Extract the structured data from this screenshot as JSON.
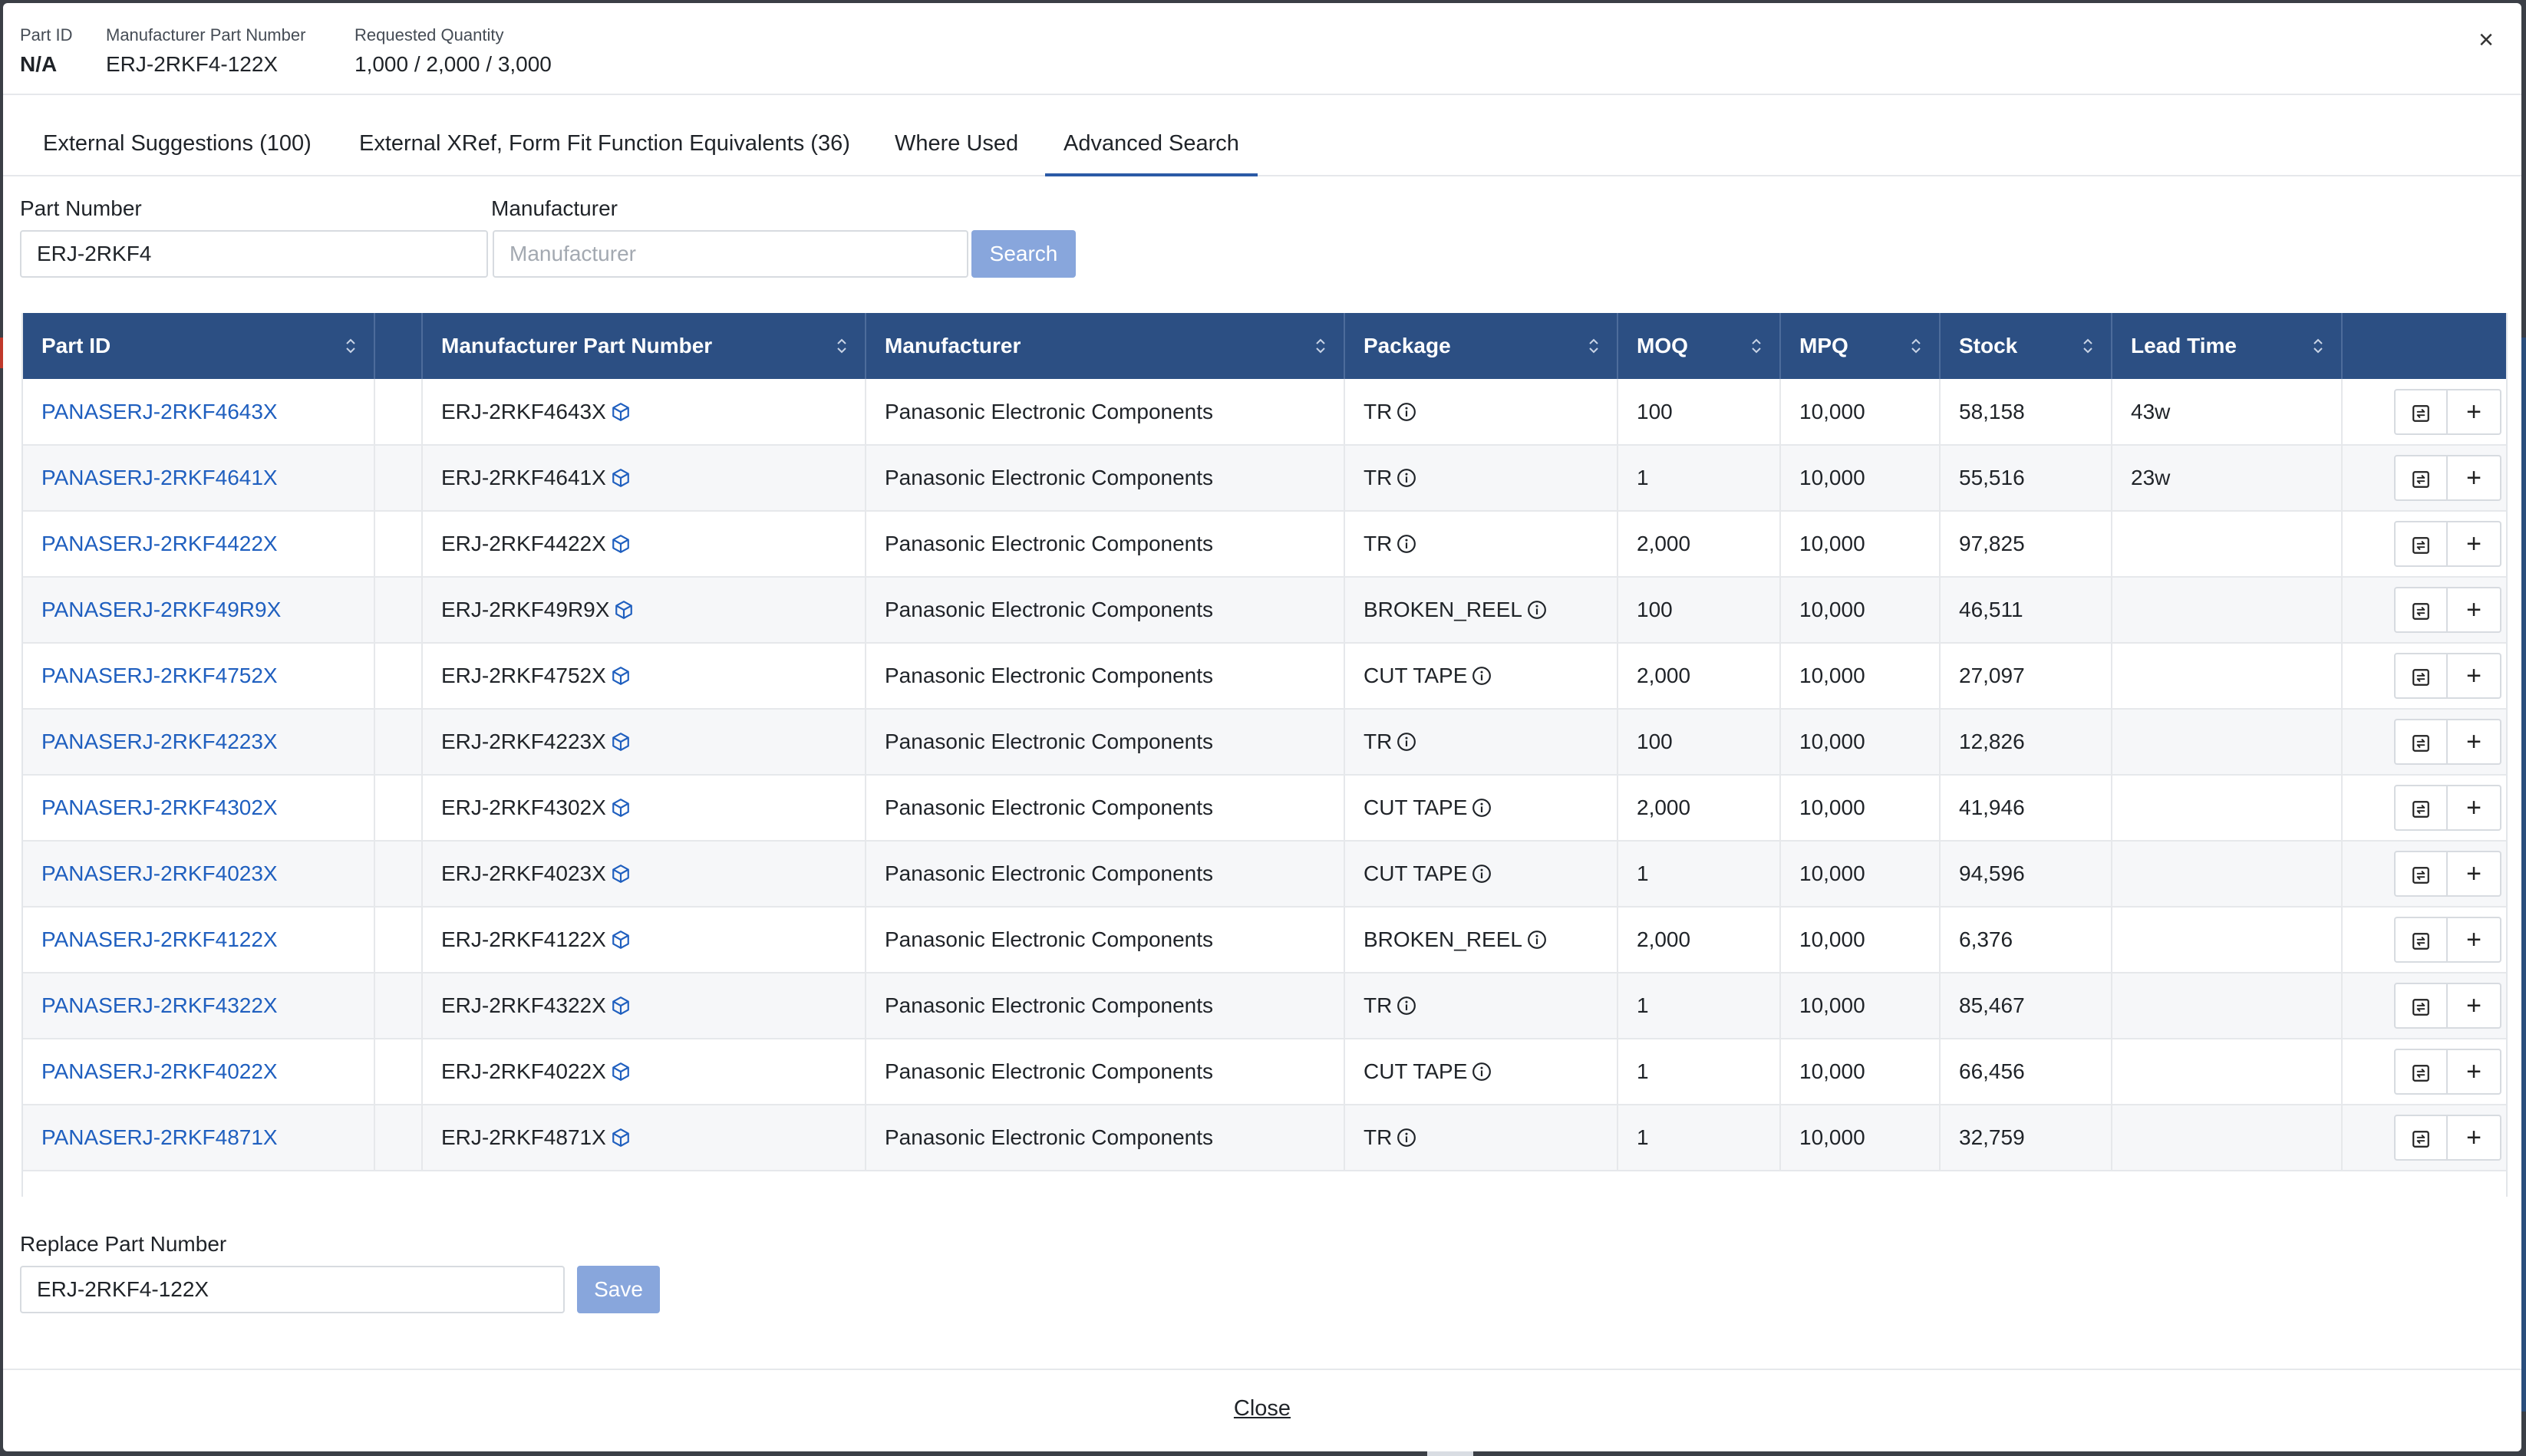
{
  "header": {
    "part_id_label": "Part ID",
    "part_id_value": "N/A",
    "mpn_label": "Manufacturer Part Number",
    "mpn_value": "ERJ-2RKF4-122X",
    "qty_label": "Requested Quantity",
    "qty_value": "1,000 / 2,000 / 3,000",
    "close_glyph": "×"
  },
  "tabs": [
    {
      "label": "External Suggestions (100)",
      "active": false
    },
    {
      "label": "External XRef, Form Fit Function Equivalents (36)",
      "active": false
    },
    {
      "label": "Where Used",
      "active": false
    },
    {
      "label": "Advanced Search",
      "active": true
    }
  ],
  "search": {
    "part_number_label": "Part Number",
    "part_number_value": "ERJ-2RKF4",
    "manufacturer_label": "Manufacturer",
    "manufacturer_value": "",
    "manufacturer_placeholder": "Manufacturer",
    "search_button": "Search"
  },
  "table": {
    "columns": [
      "Part ID",
      "",
      "Manufacturer Part Number",
      "Manufacturer",
      "Package",
      "MOQ",
      "MPQ",
      "Stock",
      "Lead Time",
      ""
    ],
    "rows": [
      {
        "part_id": "PANASERJ-2RKF4643X",
        "mpn": "ERJ-2RKF4643X",
        "manufacturer": "Panasonic Electronic Components",
        "package": "TR",
        "moq": "100",
        "mpq": "10,000",
        "stock": "58,158",
        "lead_time": "43w"
      },
      {
        "part_id": "PANASERJ-2RKF4641X",
        "mpn": "ERJ-2RKF4641X",
        "manufacturer": "Panasonic Electronic Components",
        "package": "TR",
        "moq": "1",
        "mpq": "10,000",
        "stock": "55,516",
        "lead_time": "23w"
      },
      {
        "part_id": "PANASERJ-2RKF4422X",
        "mpn": "ERJ-2RKF4422X",
        "manufacturer": "Panasonic Electronic Components",
        "package": "TR",
        "moq": "2,000",
        "mpq": "10,000",
        "stock": "97,825",
        "lead_time": ""
      },
      {
        "part_id": "PANASERJ-2RKF49R9X",
        "mpn": "ERJ-2RKF49R9X",
        "manufacturer": "Panasonic Electronic Components",
        "package": "BROKEN_REEL",
        "moq": "100",
        "mpq": "10,000",
        "stock": "46,511",
        "lead_time": ""
      },
      {
        "part_id": "PANASERJ-2RKF4752X",
        "mpn": "ERJ-2RKF4752X",
        "manufacturer": "Panasonic Electronic Components",
        "package": "CUT TAPE",
        "moq": "2,000",
        "mpq": "10,000",
        "stock": "27,097",
        "lead_time": ""
      },
      {
        "part_id": "PANASERJ-2RKF4223X",
        "mpn": "ERJ-2RKF4223X",
        "manufacturer": "Panasonic Electronic Components",
        "package": "TR",
        "moq": "100",
        "mpq": "10,000",
        "stock": "12,826",
        "lead_time": ""
      },
      {
        "part_id": "PANASERJ-2RKF4302X",
        "mpn": "ERJ-2RKF4302X",
        "manufacturer": "Panasonic Electronic Components",
        "package": "CUT TAPE",
        "moq": "2,000",
        "mpq": "10,000",
        "stock": "41,946",
        "lead_time": ""
      },
      {
        "part_id": "PANASERJ-2RKF4023X",
        "mpn": "ERJ-2RKF4023X",
        "manufacturer": "Panasonic Electronic Components",
        "package": "CUT TAPE",
        "moq": "1",
        "mpq": "10,000",
        "stock": "94,596",
        "lead_time": ""
      },
      {
        "part_id": "PANASERJ-2RKF4122X",
        "mpn": "ERJ-2RKF4122X",
        "manufacturer": "Panasonic Electronic Components",
        "package": "BROKEN_REEL",
        "moq": "2,000",
        "mpq": "10,000",
        "stock": "6,376",
        "lead_time": ""
      },
      {
        "part_id": "PANASERJ-2RKF4322X",
        "mpn": "ERJ-2RKF4322X",
        "manufacturer": "Panasonic Electronic Components",
        "package": "TR",
        "moq": "1",
        "mpq": "10,000",
        "stock": "85,467",
        "lead_time": ""
      },
      {
        "part_id": "PANASERJ-2RKF4022X",
        "mpn": "ERJ-2RKF4022X",
        "manufacturer": "Panasonic Electronic Components",
        "package": "CUT TAPE",
        "moq": "1",
        "mpq": "10,000",
        "stock": "66,456",
        "lead_time": ""
      },
      {
        "part_id": "PANASERJ-2RKF4871X",
        "mpn": "ERJ-2RKF4871X",
        "manufacturer": "Panasonic Electronic Components",
        "package": "TR",
        "moq": "1",
        "mpq": "10,000",
        "stock": "32,759",
        "lead_time": ""
      }
    ],
    "action_add_glyph": "+"
  },
  "replace": {
    "label": "Replace Part Number",
    "value": "ERJ-2RKF4-122X",
    "save_button": "Save"
  },
  "footer": {
    "close_label": "Close"
  },
  "colors": {
    "header_bg": "#2c4f83",
    "link": "#1f5fbf",
    "button_soft": "#88a6dc",
    "tab_active": "#2b5aa6"
  }
}
